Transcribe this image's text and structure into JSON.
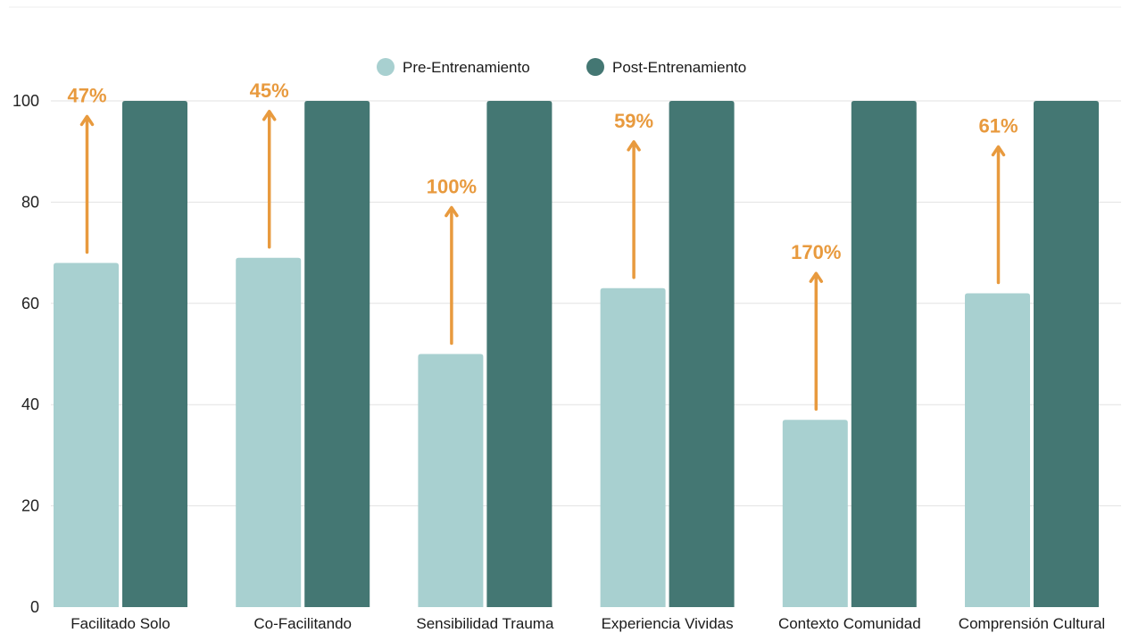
{
  "chart_data": {
    "type": "bar",
    "title": "",
    "xlabel": "",
    "ylabel": "",
    "ylim": [
      0,
      100
    ],
    "yticks": [
      0,
      20,
      40,
      60,
      80,
      100
    ],
    "grid": true,
    "legend_position": "top-center",
    "categories": [
      "Facilitado Solo",
      "Co-Facilitando",
      "Sensibilidad Trauma",
      "Experiencia Vividas",
      "Contexto Comunidad",
      "Comprensión Cultural"
    ],
    "series": [
      {
        "name": "Pre-Entrenamiento",
        "color": "#a8d0d0",
        "values": [
          68,
          69,
          50,
          63,
          37,
          62
        ]
      },
      {
        "name": "Post-Entrenamiento",
        "color": "#447773",
        "values": [
          100,
          100,
          100,
          100,
          100,
          100
        ]
      }
    ],
    "annotations": {
      "type": "percent-change-arrows",
      "color": "#e89a3e",
      "labels": [
        "47%",
        "45%",
        "100%",
        "59%",
        "170%",
        "61%"
      ]
    }
  }
}
